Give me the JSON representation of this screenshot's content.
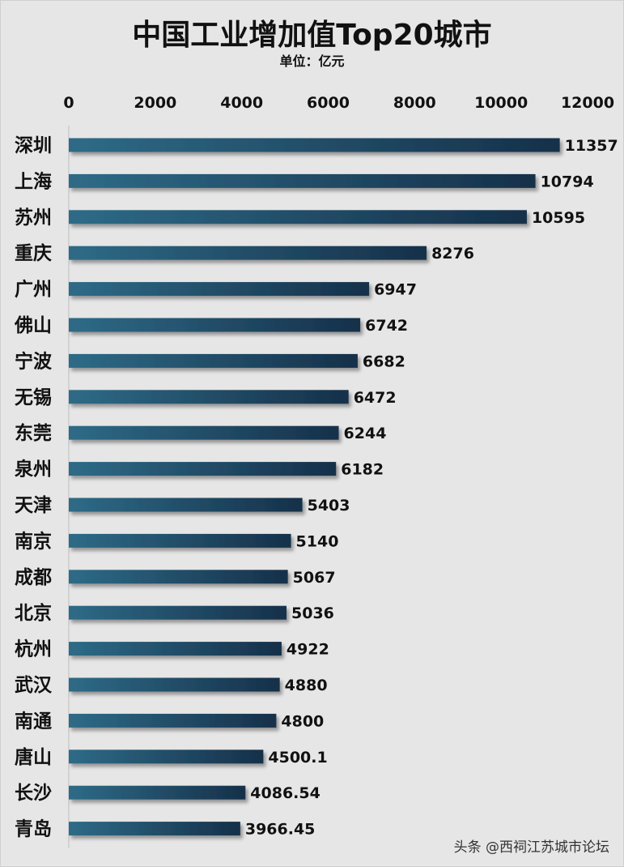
{
  "title": "中国工业增加值Top20城市",
  "subtitle": "单位：亿元",
  "watermark": "头条 @西祠江苏城市论坛",
  "colors": {
    "bar_start": "#2e6b87",
    "bar_end": "#16304a",
    "background": "#e6e6e6"
  },
  "chart_data": {
    "type": "bar",
    "orientation": "horizontal",
    "categories": [
      "深圳",
      "上海",
      "苏州",
      "重庆",
      "广州",
      "佛山",
      "宁波",
      "无锡",
      "东莞",
      "泉州",
      "天津",
      "南京",
      "成都",
      "北京",
      "杭州",
      "武汉",
      "南通",
      "唐山",
      "长沙",
      "青岛"
    ],
    "values": [
      11357,
      10794,
      10595,
      8276,
      6947,
      6742,
      6682,
      6472,
      6244,
      6182,
      5403,
      5140,
      5067,
      5036,
      4922,
      4880,
      4800,
      4500.1,
      4086.54,
      3966.45
    ],
    "value_labels": [
      "11357",
      "10794",
      "10595",
      "8276",
      "6947",
      "6742",
      "6682",
      "6472",
      "6244",
      "6182",
      "5403",
      "5140",
      "5067",
      "5036",
      "4922",
      "4880",
      "4800",
      "4500.1",
      "4086.54",
      "3966.45"
    ],
    "x_ticks": [
      0,
      2000,
      4000,
      6000,
      8000,
      10000,
      12000
    ],
    "x_tick_labels": [
      "0",
      "2000",
      "4000",
      "6000",
      "8000",
      "10000",
      "12000"
    ],
    "xlim": [
      0,
      12000
    ],
    "axis_position": "top",
    "grid": false,
    "legend": "none"
  }
}
